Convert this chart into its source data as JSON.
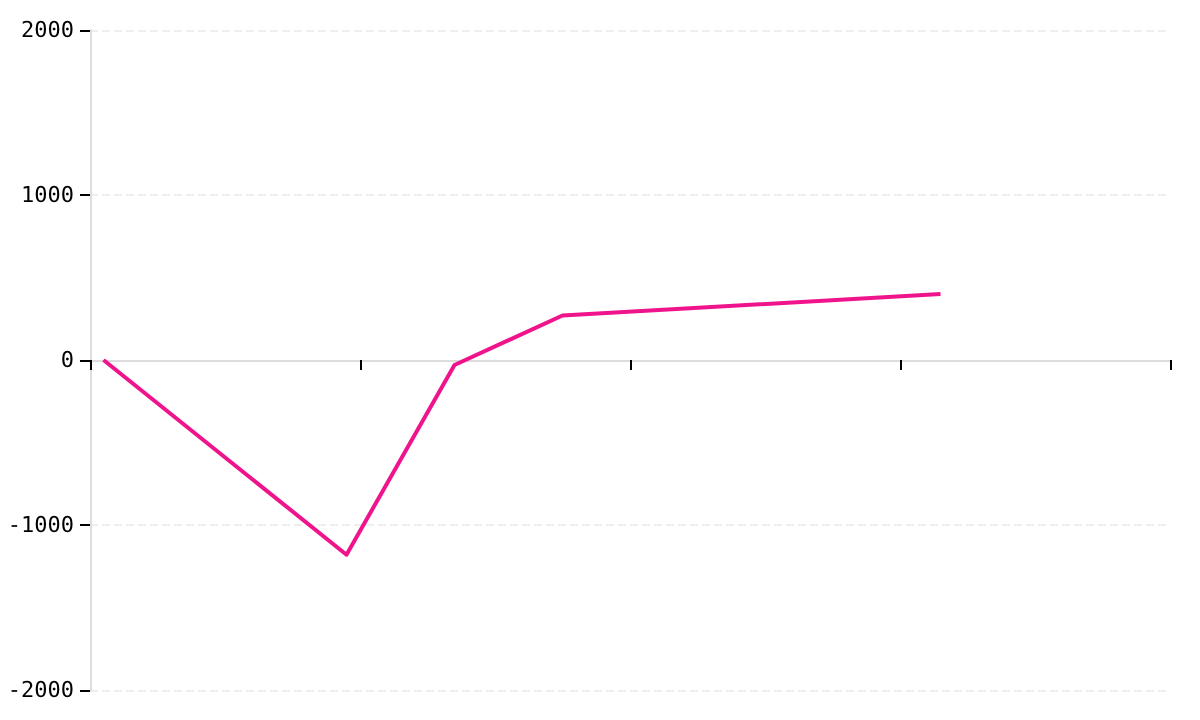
{
  "chart_data": {
    "type": "line",
    "categories": [
      null,
      null,
      null,
      null,
      null,
      null,
      null,
      null,
      null,
      null,
      null,
      null,
      null,
      null,
      null,
      null,
      null,
      null,
      null,
      null,
      null,
      null,
      null,
      null,
      null,
      null,
      null,
      null,
      null,
      null,
      null,
      null,
      null,
      null,
      null,
      null,
      null,
      null,
      null,
      null
    ],
    "series": [
      {
        "color": "#f0148c",
        "values": [
          0,
          null,
          null,
          null,
          null,
          null,
          null,
          null,
          null,
          -1180,
          null,
          null,
          null,
          -30,
          null,
          null,
          null,
          270,
          null,
          null,
          null,
          null,
          null,
          null,
          null,
          null,
          null,
          null,
          null,
          null,
          null,
          400,
          null,
          null,
          null,
          null,
          null,
          null,
          null,
          null
        ]
      }
    ],
    "ylim": [
      -2000,
      2000
    ],
    "yticks": [
      -2000,
      -1000,
      0,
      1000,
      2000
    ],
    "grid": "y",
    "tick_labels": "y",
    "marker": "none",
    "line_style": "solid"
  }
}
